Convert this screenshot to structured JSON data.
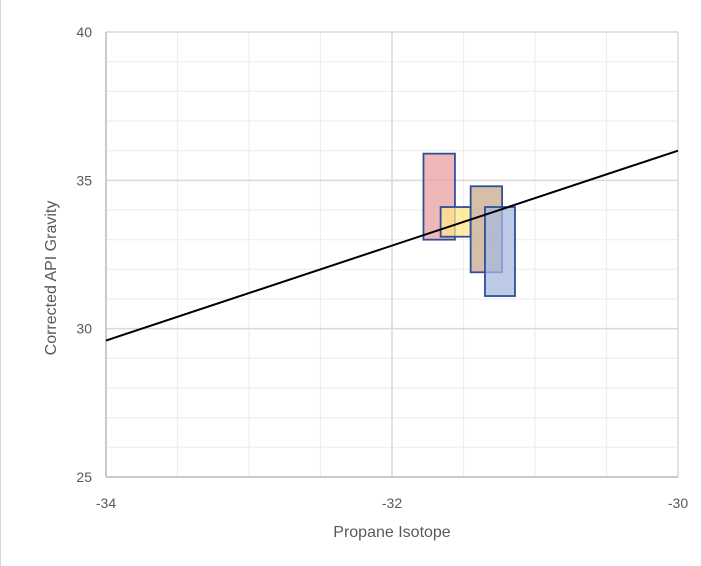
{
  "chart_data": {
    "type": "scatter",
    "title": "",
    "xlabel": "Propane Isotope",
    "ylabel": "Corrected API Gravity",
    "xlim": [
      -34,
      -30
    ],
    "ylim": [
      25,
      40
    ],
    "x_major_ticks": [
      -34,
      -32,
      -30
    ],
    "x_minor_ticks": [
      -33.5,
      -33,
      -32.5,
      -31.5,
      -31,
      -30.5
    ],
    "y_major_ticks": [
      25,
      30,
      35,
      40
    ],
    "y_minor_ticks": [
      26,
      27,
      28,
      29,
      31,
      32,
      33,
      34,
      36,
      37,
      38,
      39
    ],
    "grid": true,
    "legend": "none",
    "trend_line": {
      "x": [
        -34,
        -30
      ],
      "y": [
        29.6,
        36.0
      ],
      "color": "#000000"
    },
    "ranges": [
      {
        "x": [
          -31.78,
          -31.56
        ],
        "y": [
          33.0,
          35.9
        ],
        "fill": "#e8a0a0",
        "stroke": "#2f4f99"
      },
      {
        "x": [
          -31.66,
          -31.45
        ],
        "y": [
          33.1,
          34.1
        ],
        "fill": "#fde68a",
        "stroke": "#2f4f99"
      },
      {
        "x": [
          -31.45,
          -31.23
        ],
        "y": [
          31.9,
          34.8
        ],
        "fill": "#c8a98c",
        "stroke": "#2f4f99"
      },
      {
        "x": [
          -31.35,
          -31.14
        ],
        "y": [
          31.1,
          34.1
        ],
        "fill": "#a7badf",
        "stroke": "#2f4f99"
      }
    ],
    "colors": {
      "grid": "#d9d9d9",
      "minor_grid": "#eeeeee",
      "axis": "#bfbfbf",
      "text": "#595959"
    }
  }
}
